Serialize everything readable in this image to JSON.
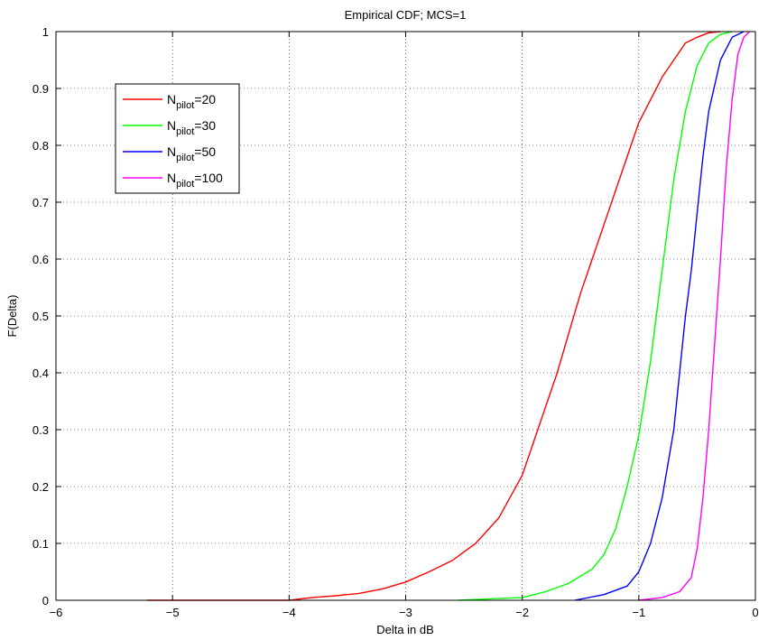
{
  "chart_data": {
    "type": "line",
    "title": "Empirical CDF; MCS=1",
    "xlabel": "Delta in dB",
    "ylabel": "F(Delta)",
    "xlim": [
      -6,
      0
    ],
    "ylim": [
      0,
      1
    ],
    "x_ticks": [
      -6,
      -5,
      -4,
      -3,
      -2,
      -1,
      0
    ],
    "x_tick_labels": [
      "−6",
      "−5",
      "−4",
      "−3",
      "−2",
      "−1",
      "0"
    ],
    "y_ticks": [
      0,
      0.1,
      0.2,
      0.3,
      0.4,
      0.5,
      0.6,
      0.7,
      0.8,
      0.9,
      1
    ],
    "y_tick_labels": [
      "0",
      "0.1",
      "0.2",
      "0.3",
      "0.4",
      "0.5",
      "0.6",
      "0.7",
      "0.8",
      "0.9",
      "1"
    ],
    "grid": true,
    "legend_position": "top-left",
    "series": [
      {
        "name": "N_pilot=20",
        "legend_base": "N",
        "legend_sub": "pilot",
        "legend_suffix": "=20",
        "color": "#ff0000",
        "points": [
          [
            -5.22,
            0
          ],
          [
            -4.0,
            0.0
          ],
          [
            -3.8,
            0.005
          ],
          [
            -3.6,
            0.008
          ],
          [
            -3.4,
            0.012
          ],
          [
            -3.2,
            0.02
          ],
          [
            -3.0,
            0.032
          ],
          [
            -2.8,
            0.05
          ],
          [
            -2.6,
            0.07
          ],
          [
            -2.4,
            0.1
          ],
          [
            -2.2,
            0.145
          ],
          [
            -2.0,
            0.22
          ],
          [
            -1.9,
            0.28
          ],
          [
            -1.8,
            0.34
          ],
          [
            -1.7,
            0.4
          ],
          [
            -1.6,
            0.47
          ],
          [
            -1.5,
            0.54
          ],
          [
            -1.4,
            0.6
          ],
          [
            -1.3,
            0.66
          ],
          [
            -1.2,
            0.72
          ],
          [
            -1.1,
            0.78
          ],
          [
            -1.0,
            0.84
          ],
          [
            -0.9,
            0.88
          ],
          [
            -0.8,
            0.92
          ],
          [
            -0.7,
            0.95
          ],
          [
            -0.6,
            0.98
          ],
          [
            -0.5,
            0.99
          ],
          [
            -0.4,
            0.998
          ],
          [
            -0.3,
            1.0
          ]
        ]
      },
      {
        "name": "N_pilot=30",
        "legend_base": "N",
        "legend_sub": "pilot",
        "legend_suffix": "=30",
        "color": "#00ff00",
        "points": [
          [
            -2.55,
            0
          ],
          [
            -2.0,
            0.005
          ],
          [
            -1.8,
            0.015
          ],
          [
            -1.6,
            0.03
          ],
          [
            -1.4,
            0.055
          ],
          [
            -1.3,
            0.08
          ],
          [
            -1.2,
            0.125
          ],
          [
            -1.1,
            0.2
          ],
          [
            -1.0,
            0.29
          ],
          [
            -0.9,
            0.42
          ],
          [
            -0.85,
            0.5
          ],
          [
            -0.8,
            0.58
          ],
          [
            -0.75,
            0.66
          ],
          [
            -0.7,
            0.74
          ],
          [
            -0.6,
            0.86
          ],
          [
            -0.5,
            0.94
          ],
          [
            -0.4,
            0.98
          ],
          [
            -0.3,
            0.995
          ],
          [
            -0.2,
            1.0
          ]
        ]
      },
      {
        "name": "N_pilot=50",
        "legend_base": "N",
        "legend_sub": "pilot",
        "legend_suffix": "=50",
        "color": "#0000ff",
        "points": [
          [
            -1.55,
            0
          ],
          [
            -1.3,
            0.01
          ],
          [
            -1.1,
            0.025
          ],
          [
            -1.0,
            0.05
          ],
          [
            -0.9,
            0.1
          ],
          [
            -0.8,
            0.18
          ],
          [
            -0.7,
            0.3
          ],
          [
            -0.65,
            0.4
          ],
          [
            -0.6,
            0.5
          ],
          [
            -0.55,
            0.58
          ],
          [
            -0.5,
            0.68
          ],
          [
            -0.45,
            0.78
          ],
          [
            -0.4,
            0.86
          ],
          [
            -0.3,
            0.95
          ],
          [
            -0.2,
            0.99
          ],
          [
            -0.1,
            1.0
          ]
        ]
      },
      {
        "name": "N_pilot=100",
        "legend_base": "N",
        "legend_sub": "pilot",
        "legend_suffix": "=100",
        "color": "#ff00ff",
        "points": [
          [
            -1.0,
            0
          ],
          [
            -0.8,
            0.005
          ],
          [
            -0.65,
            0.015
          ],
          [
            -0.55,
            0.04
          ],
          [
            -0.5,
            0.09
          ],
          [
            -0.45,
            0.18
          ],
          [
            -0.4,
            0.3
          ],
          [
            -0.35,
            0.45
          ],
          [
            -0.3,
            0.6
          ],
          [
            -0.25,
            0.76
          ],
          [
            -0.2,
            0.88
          ],
          [
            -0.15,
            0.96
          ],
          [
            -0.1,
            0.99
          ],
          [
            -0.05,
            1.0
          ]
        ]
      }
    ]
  }
}
